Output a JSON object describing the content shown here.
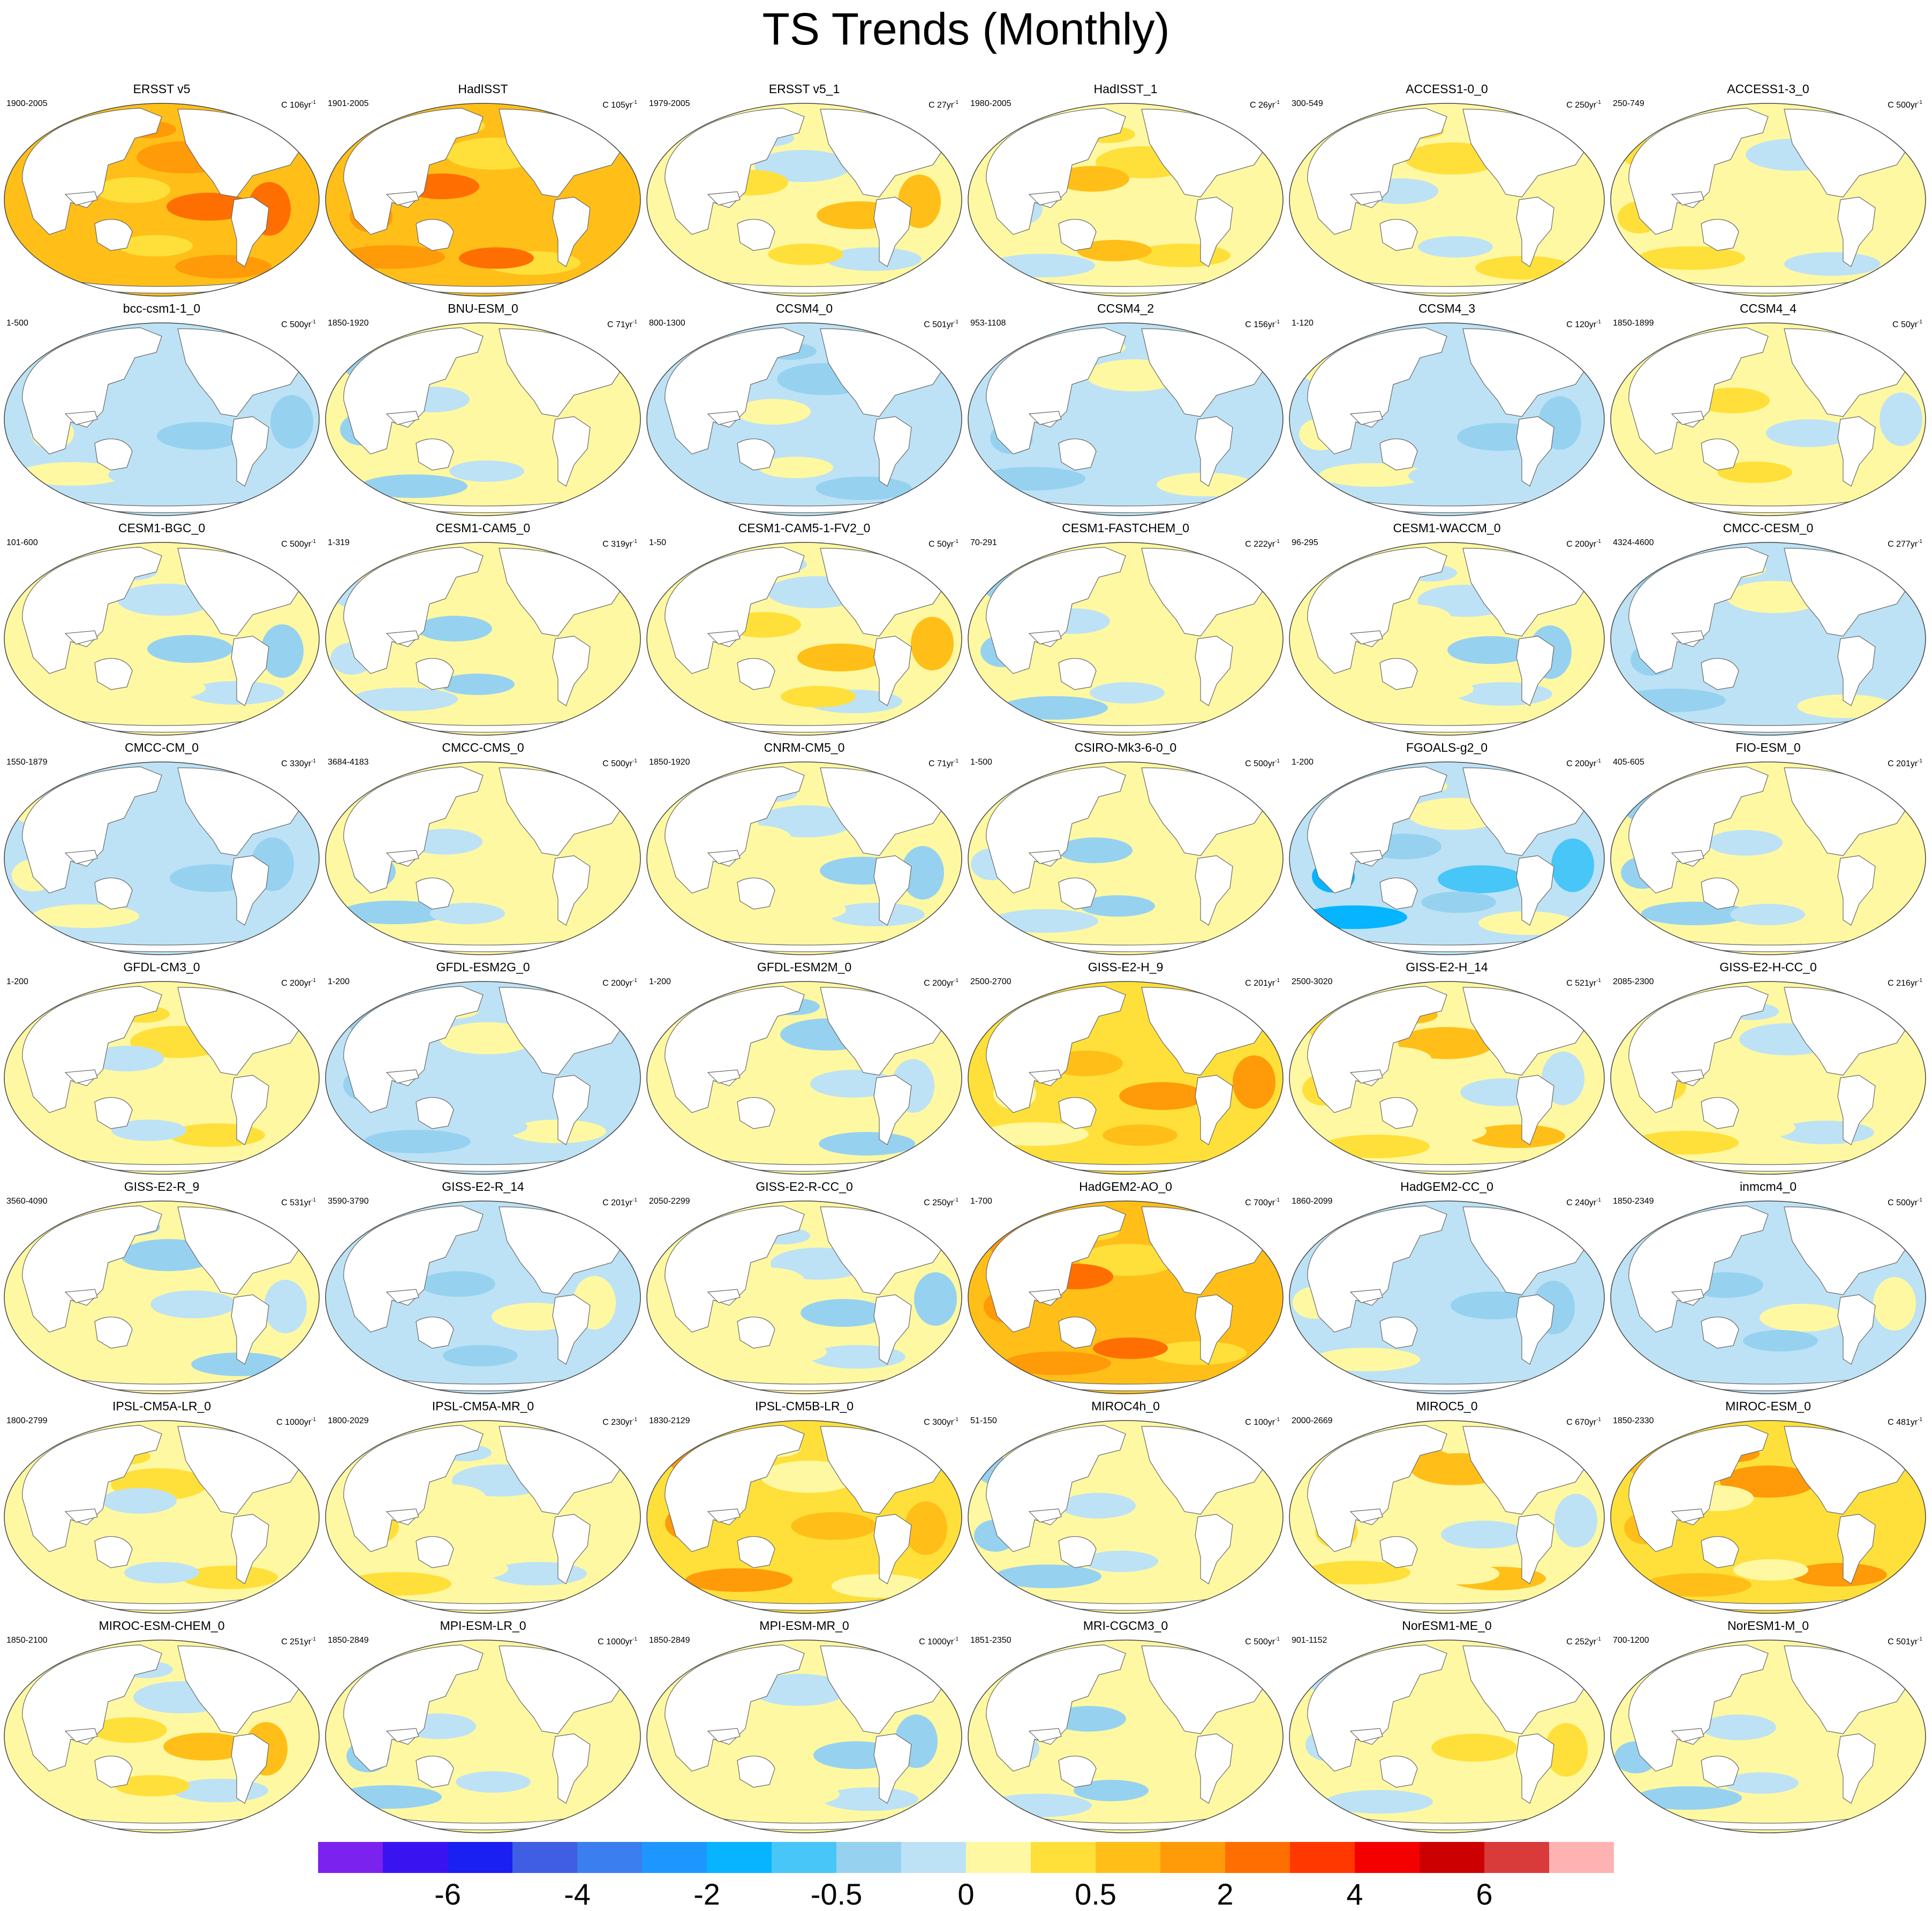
{
  "title": "TS Trends (Monthly)",
  "chart_data": {
    "type": "heatmap",
    "title": "TS Trends (Monthly)",
    "projection": "Robinson-style global map, Pacific centered",
    "colorbar": {
      "labels": [
        "-6",
        "-4",
        "-2",
        "-0.5",
        "0",
        "0.5",
        "2",
        "4",
        "6"
      ],
      "colors": [
        "#7b22ee",
        "#3a14f0",
        "#1a1ff2",
        "#3f5ee4",
        "#3a7ef0",
        "#1e96ff",
        "#06b4ff",
        "#48c6f8",
        "#96d2f0",
        "#bde2f5",
        "#fff8a2",
        "#ffe03a",
        "#ffbf18",
        "#ff9a08",
        "#ff6e00",
        "#ff3800",
        "#f50000",
        "#cc0000",
        "#d93a3a",
        "#ffb2b2"
      ]
    },
    "panels": [
      {
        "name": "ERSST v5",
        "range": "1900-2005",
        "scale": "C 106yr",
        "tone": 4
      },
      {
        "name": "HadISST",
        "range": "1901-2005",
        "scale": "C 105yr",
        "tone": 4
      },
      {
        "name": "ERSST v5_1",
        "range": "1979-2005",
        "scale": "C 27yr",
        "tone": 2
      },
      {
        "name": "HadISST_1",
        "range": "1980-2005",
        "scale": "C 26yr",
        "tone": 2
      },
      {
        "name": "ACCESS1-0_0",
        "range": "300-549",
        "scale": "C 250yr",
        "tone": 1
      },
      {
        "name": "ACCESS1-3_0",
        "range": "250-749",
        "scale": "C 500yr",
        "tone": 1
      },
      {
        "name": "bcc-csm1-1_0",
        "range": "1-500",
        "scale": "C 500yr",
        "tone": -1
      },
      {
        "name": "BNU-ESM_0",
        "range": "1850-1920",
        "scale": "C 71yr",
        "tone": 0
      },
      {
        "name": "CCSM4_0",
        "range": "800-1300",
        "scale": "C 501yr",
        "tone": -1
      },
      {
        "name": "CCSM4_2",
        "range": "953-1108",
        "scale": "C 156yr",
        "tone": -1
      },
      {
        "name": "CCSM4_3",
        "range": "1-120",
        "scale": "C 120yr",
        "tone": -1
      },
      {
        "name": "CCSM4_4",
        "range": "1850-1899",
        "scale": "C 50yr",
        "tone": 1
      },
      {
        "name": "CESM1-BGC_0",
        "range": "101-600",
        "scale": "C 500yr",
        "tone": 0
      },
      {
        "name": "CESM1-CAM5_0",
        "range": "1-319",
        "scale": "C 319yr",
        "tone": 0
      },
      {
        "name": "CESM1-CAM5-1-FV2_0",
        "range": "1-50",
        "scale": "C 50yr",
        "tone": 2
      },
      {
        "name": "CESM1-FASTCHEM_0",
        "range": "70-291",
        "scale": "C 222yr",
        "tone": 0
      },
      {
        "name": "CESM1-WACCM_0",
        "range": "96-295",
        "scale": "C 200yr",
        "tone": 0
      },
      {
        "name": "CMCC-CESM_0",
        "range": "4324-4600",
        "scale": "C 277yr",
        "tone": -1
      },
      {
        "name": "CMCC-CM_0",
        "range": "1550-1879",
        "scale": "C 330yr",
        "tone": -1
      },
      {
        "name": "CMCC-CMS_0",
        "range": "3684-4183",
        "scale": "C 500yr",
        "tone": 0
      },
      {
        "name": "CNRM-CM5_0",
        "range": "1850-1920",
        "scale": "C 71yr",
        "tone": 0
      },
      {
        "name": "CSIRO-Mk3-6-0_0",
        "range": "1-500",
        "scale": "C 500yr",
        "tone": 0
      },
      {
        "name": "FGOALS-g2_0",
        "range": "1-200",
        "scale": "C 200yr",
        "tone": -2
      },
      {
        "name": "FIO-ESM_0",
        "range": "405-605",
        "scale": "C 201yr",
        "tone": 0
      },
      {
        "name": "GFDL-CM3_0",
        "range": "1-200",
        "scale": "C 200yr",
        "tone": 1
      },
      {
        "name": "GFDL-ESM2G_0",
        "range": "1-200",
        "scale": "C 200yr",
        "tone": -1
      },
      {
        "name": "GFDL-ESM2M_0",
        "range": "1-200",
        "scale": "C 200yr",
        "tone": 0
      },
      {
        "name": "GISS-E2-H_9",
        "range": "2500-2700",
        "scale": "C 201yr",
        "tone": 3
      },
      {
        "name": "GISS-E2-H_14",
        "range": "2500-3020",
        "scale": "C 521yr",
        "tone": 2
      },
      {
        "name": "GISS-E2-H-CC_0",
        "range": "2085-2300",
        "scale": "C 216yr",
        "tone": 1
      },
      {
        "name": "GISS-E2-R_9",
        "range": "3560-4090",
        "scale": "C 531yr",
        "tone": 0
      },
      {
        "name": "GISS-E2-R_14",
        "range": "3590-3790",
        "scale": "C 201yr",
        "tone": -1
      },
      {
        "name": "GISS-E2-R-CC_0",
        "range": "2050-2299",
        "scale": "C 250yr",
        "tone": 0
      },
      {
        "name": "HadGEM2-AO_0",
        "range": "1-700",
        "scale": "C 700yr",
        "tone": 4
      },
      {
        "name": "HadGEM2-CC_0",
        "range": "1860-2099",
        "scale": "C 240yr",
        "tone": -1
      },
      {
        "name": "inmcm4_0",
        "range": "1850-2349",
        "scale": "C 500yr",
        "tone": -1
      },
      {
        "name": "IPSL-CM5A-LR_0",
        "range": "1800-2799",
        "scale": "C 1000yr",
        "tone": 1
      },
      {
        "name": "IPSL-CM5A-MR_0",
        "range": "1800-2029",
        "scale": "C 230yr",
        "tone": 1
      },
      {
        "name": "IPSL-CM5B-LR_0",
        "range": "1830-2129",
        "scale": "C 300yr",
        "tone": 3
      },
      {
        "name": "MIROC4h_0",
        "range": "51-150",
        "scale": "C 100yr",
        "tone": 0
      },
      {
        "name": "MIROC5_0",
        "range": "2000-2669",
        "scale": "C 670yr",
        "tone": 2
      },
      {
        "name": "MIROC-ESM_0",
        "range": "1850-2330",
        "scale": "C 481yr",
        "tone": 3
      },
      {
        "name": "MIROC-ESM-CHEM_0",
        "range": "1850-2100",
        "scale": "C 251yr",
        "tone": 2
      },
      {
        "name": "MPI-ESM-LR_0",
        "range": "1850-2849",
        "scale": "C 1000yr",
        "tone": 0
      },
      {
        "name": "MPI-ESM-MR_0",
        "range": "1850-2849",
        "scale": "C 1000yr",
        "tone": 0
      },
      {
        "name": "MRI-CGCM3_0",
        "range": "1851-2350",
        "scale": "C 500yr",
        "tone": 0
      },
      {
        "name": "NorESM1-ME_0",
        "range": "901-1152",
        "scale": "C 252yr",
        "tone": 1
      },
      {
        "name": "NorESM1-M_0",
        "range": "700-1200",
        "scale": "C 501yr",
        "tone": 0
      }
    ]
  }
}
